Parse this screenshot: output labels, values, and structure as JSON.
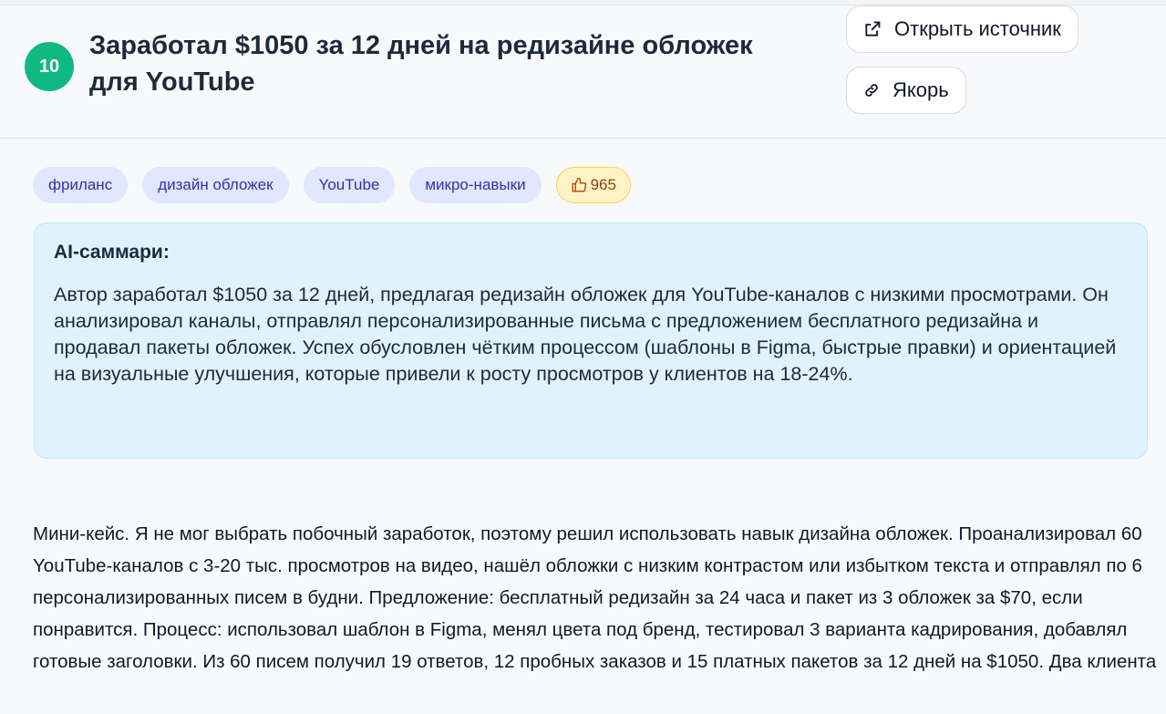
{
  "header": {
    "number": "10",
    "title": "Заработал $1050 за 12 дней на редизайне обложек для YouTube",
    "open_source_label": "Открыть источник",
    "anchor_label": "Якорь"
  },
  "tags": [
    "фриланс",
    "дизайн обложек",
    "YouTube",
    "микро-навыки"
  ],
  "likes": "965",
  "summary": {
    "heading": "AI-саммари:",
    "text": "Автор заработал $1050 за 12 дней, предлагая редизайн обложек для YouTube-каналов с низкими просмотрами. Он анализировал каналы, отправлял персонализированные письма с предложением бесплатного редизайна и продавал пакеты обложек. Успех обусловлен чётким процессом (шаблоны в Figma, быстрые правки) и ориентацией на визуальные улучшения, которые привели к росту просмотров у клиентов на 18-24%."
  },
  "body": "Мини-кейс. Я не мог выбрать побочный заработок, поэтому решил использовать навык дизайна обложек. Проанализировал 60 YouTube-каналов с 3-20 тыс. просмотров на видео, нашёл обложки с низким контрастом или избытком текста и отправлял по 6 персонализированных писем в будни. Предложение: бесплатный редизайн за 24 часа и пакет из 3 обложек за $70, если понравится. Процесс: использовал шаблон в Figma, менял цвета под бренд, тестировал 3 варианта кадрирования, добавлял готовые заголовки. Из 60 писем получил 19 ответов, 12 пробных заказов и 15 платных пакетов за 12 дней на $1050. Два клиента",
  "colors": {
    "badge": "#10b981",
    "summary_bg": "#e0f2fe",
    "tag_bg": "#e0e7ff",
    "likes_bg": "#fef3c7"
  }
}
